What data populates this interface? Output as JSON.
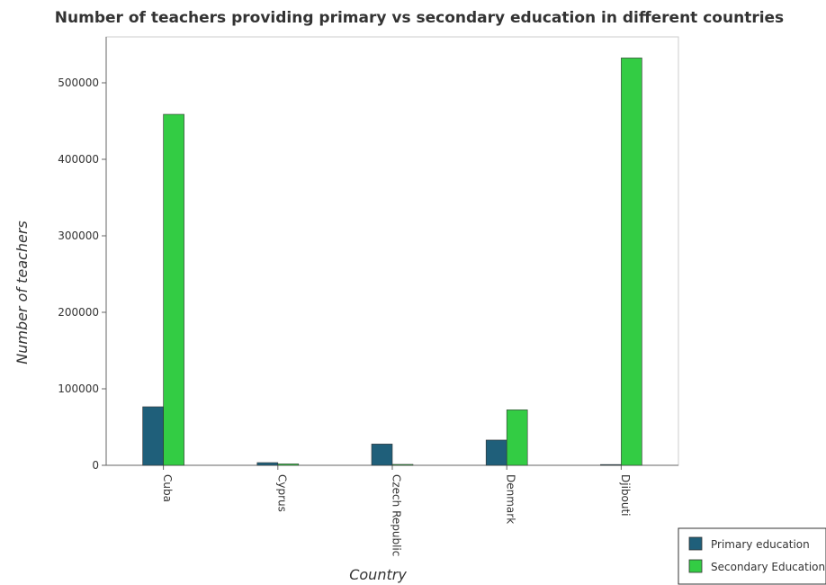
{
  "chart_data": {
    "type": "bar",
    "title": "Number of teachers providing primary vs secondary education in different countries",
    "xlabel": "Country",
    "ylabel": "Number of teachers",
    "categories": [
      "Cuba",
      "Cyprus",
      "Czech Republic",
      "Denmark",
      "Djibouti"
    ],
    "ylim": [
      0,
      560000
    ],
    "yticks": [
      0,
      100000,
      200000,
      300000,
      400000,
      500000
    ],
    "ytick_labels": [
      "0",
      "100000",
      "200000",
      "300000",
      "400000",
      "500000"
    ],
    "grid": false,
    "legend_position": "bottom-right",
    "series": [
      {
        "name": "Primary education",
        "color": "#1f5f7a",
        "values": [
          76500,
          3500,
          27800,
          33000,
          1000
        ]
      },
      {
        "name": "Secondary Education",
        "color": "#33cc44",
        "values": [
          458800,
          1800,
          1200,
          72500,
          532500
        ]
      }
    ]
  }
}
